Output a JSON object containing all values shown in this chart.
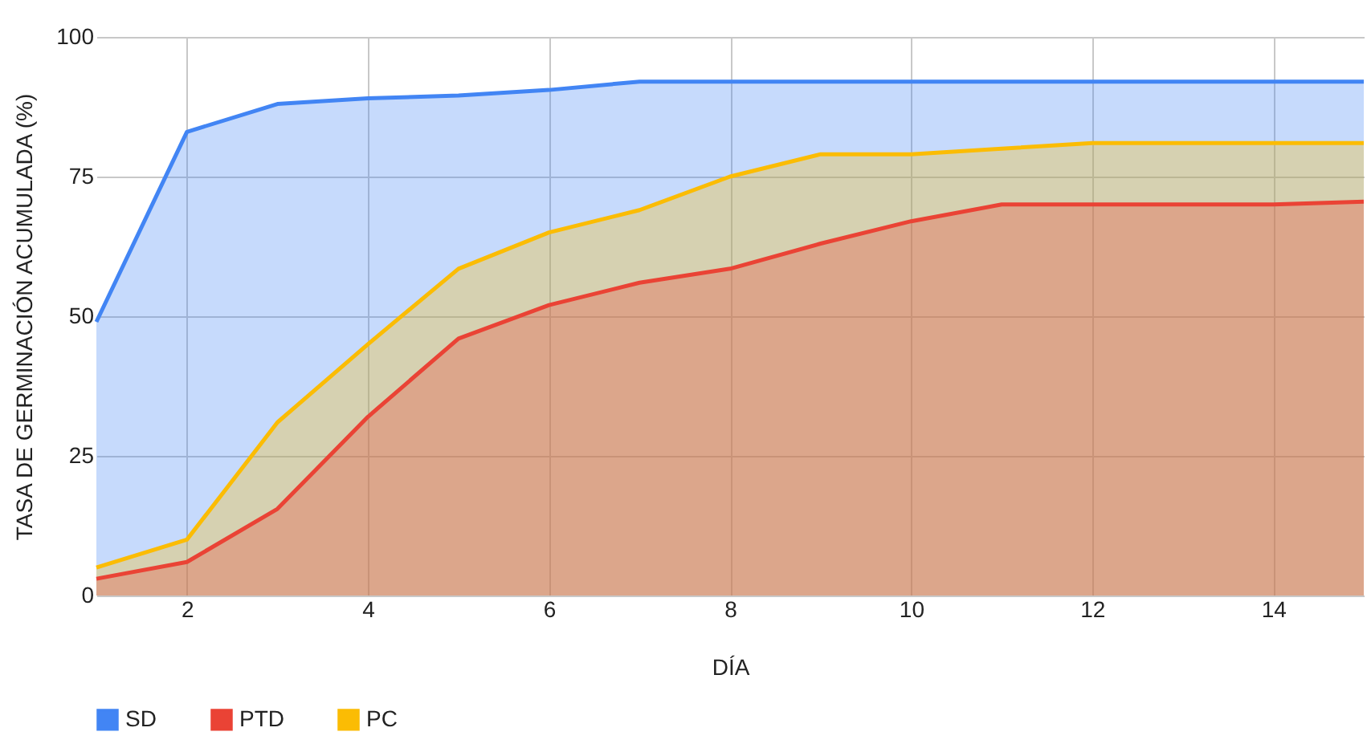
{
  "chart_data": {
    "type": "area",
    "xlabel": "DÍA",
    "ylabel": "TASA DE GERMINACIÓN ACUMULADA (%)",
    "x": [
      1,
      2,
      3,
      4,
      5,
      6,
      7,
      8,
      9,
      10,
      11,
      12,
      13,
      14,
      15
    ],
    "xlim": [
      1,
      15
    ],
    "xticks": [
      2,
      4,
      6,
      8,
      10,
      12,
      14
    ],
    "ylim": [
      0,
      100
    ],
    "yticks": [
      0,
      25,
      50,
      75,
      100
    ],
    "grid": true,
    "legend": "bottom",
    "series": [
      {
        "name": "SD",
        "color": "#4285f4",
        "values": [
          49,
          83,
          88,
          89,
          89.5,
          90.5,
          92,
          92,
          92,
          92,
          92,
          92,
          92,
          92,
          92
        ]
      },
      {
        "name": "PTD",
        "color": "#ea4335",
        "values": [
          3,
          6,
          15.5,
          32,
          46,
          52,
          56,
          58.5,
          63,
          67,
          70,
          70,
          70,
          70,
          70.5
        ]
      },
      {
        "name": "PC",
        "color": "#fbbc04",
        "values": [
          5,
          10,
          31,
          45,
          58.5,
          65,
          69,
          75,
          79,
          79,
          80,
          81,
          81,
          81,
          81
        ]
      }
    ]
  }
}
